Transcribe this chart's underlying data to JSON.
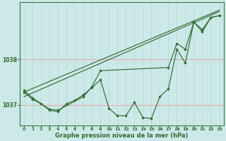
{
  "background_color": "#cce8e8",
  "line_color": "#2d6e2d",
  "marker_color": "#2d6e2d",
  "xlim": [
    -0.5,
    23.5
  ],
  "ylim": [
    1036.55,
    1039.25
  ],
  "yticks": [
    1037,
    1038
  ],
  "xticks": [
    0,
    1,
    2,
    3,
    4,
    5,
    6,
    7,
    8,
    9,
    10,
    11,
    12,
    13,
    14,
    15,
    16,
    17,
    18,
    19,
    20,
    21,
    22,
    23
  ],
  "xlabel": "Graphe pression niveau de la mer (hPa)",
  "hgrid_color": "#e8a0a0",
  "vgrid_color": "#b8d4d4",
  "main_series": [
    1037.28,
    1037.12,
    1037.02,
    1036.88,
    1036.85,
    1037.02,
    1037.1,
    1037.22,
    1037.38,
    1037.55,
    1036.92,
    1036.76,
    1036.76,
    1037.05,
    1036.72,
    1036.7,
    1037.18,
    1037.35,
    1038.22,
    1037.92,
    1038.82,
    1038.6,
    1038.92,
    1038.96
  ],
  "trend1_x": [
    0,
    23
  ],
  "trend1_y": [
    1037.18,
    1039.05
  ],
  "trend2_x": [
    0,
    23
  ],
  "trend2_y": [
    1037.28,
    1039.08
  ],
  "sparse_series_x": [
    0,
    1,
    3,
    4,
    7,
    8,
    9,
    17,
    18,
    19,
    20,
    21,
    22,
    23
  ],
  "sparse_series_y": [
    1037.32,
    1037.15,
    1036.9,
    1036.88,
    1037.18,
    1037.4,
    1037.75,
    1037.82,
    1038.35,
    1038.22,
    1038.82,
    1038.65,
    1038.92,
    1038.96
  ],
  "font_size_x": 4.5,
  "font_size_y": 5.5,
  "font_size_label": 6.0
}
